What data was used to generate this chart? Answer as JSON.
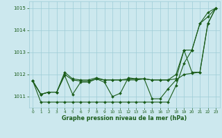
{
  "xlabel": "Graphe pression niveau de la mer (hPa)",
  "xlim": [
    -0.5,
    23.5
  ],
  "ylim": [
    1010.5,
    1015.3
  ],
  "yticks": [
    1011,
    1012,
    1013,
    1014,
    1015
  ],
  "xticks": [
    0,
    1,
    2,
    3,
    4,
    5,
    6,
    7,
    8,
    9,
    10,
    11,
    12,
    13,
    14,
    15,
    16,
    17,
    18,
    19,
    20,
    21,
    22,
    23
  ],
  "background_color": "#cce8ee",
  "grid_color": "#9dccd6",
  "line_color": "#1a5c1a",
  "series": [
    [
      1011.7,
      1010.75,
      1010.75,
      1010.75,
      1010.75,
      1010.75,
      1010.75,
      1010.75,
      1010.75,
      1010.75,
      1010.75,
      1010.75,
      1010.75,
      1010.75,
      1010.75,
      1010.75,
      1010.75,
      1010.75,
      1011.5,
      1012.5,
      1013.1,
      1014.3,
      1014.6,
      1015.0
    ],
    [
      1011.7,
      1011.1,
      1011.2,
      1011.2,
      1012.1,
      1011.8,
      1011.75,
      1011.75,
      1011.85,
      1011.75,
      1011.75,
      1011.75,
      1011.75,
      1011.75,
      1011.8,
      1011.75,
      1011.75,
      1011.75,
      1012.0,
      1013.1,
      1013.1,
      1014.3,
      1014.8,
      1015.0
    ],
    [
      1011.7,
      1011.1,
      1011.2,
      1011.2,
      1012.0,
      1011.75,
      1011.7,
      1011.7,
      1011.8,
      1011.75,
      1011.75,
      1011.75,
      1011.8,
      1011.8,
      1011.8,
      1011.75,
      1011.75,
      1011.75,
      1011.8,
      1013.1,
      1012.1,
      1012.1,
      1014.3,
      1015.0
    ],
    [
      1011.7,
      1011.1,
      1011.2,
      1011.2,
      1011.95,
      1011.1,
      1011.65,
      1011.65,
      1011.8,
      1011.65,
      1011.0,
      1011.15,
      1011.85,
      1011.8,
      1011.8,
      1010.9,
      1010.9,
      1011.35,
      1011.75,
      1012.0,
      1012.05,
      1012.1,
      1014.3,
      1015.0
    ]
  ]
}
